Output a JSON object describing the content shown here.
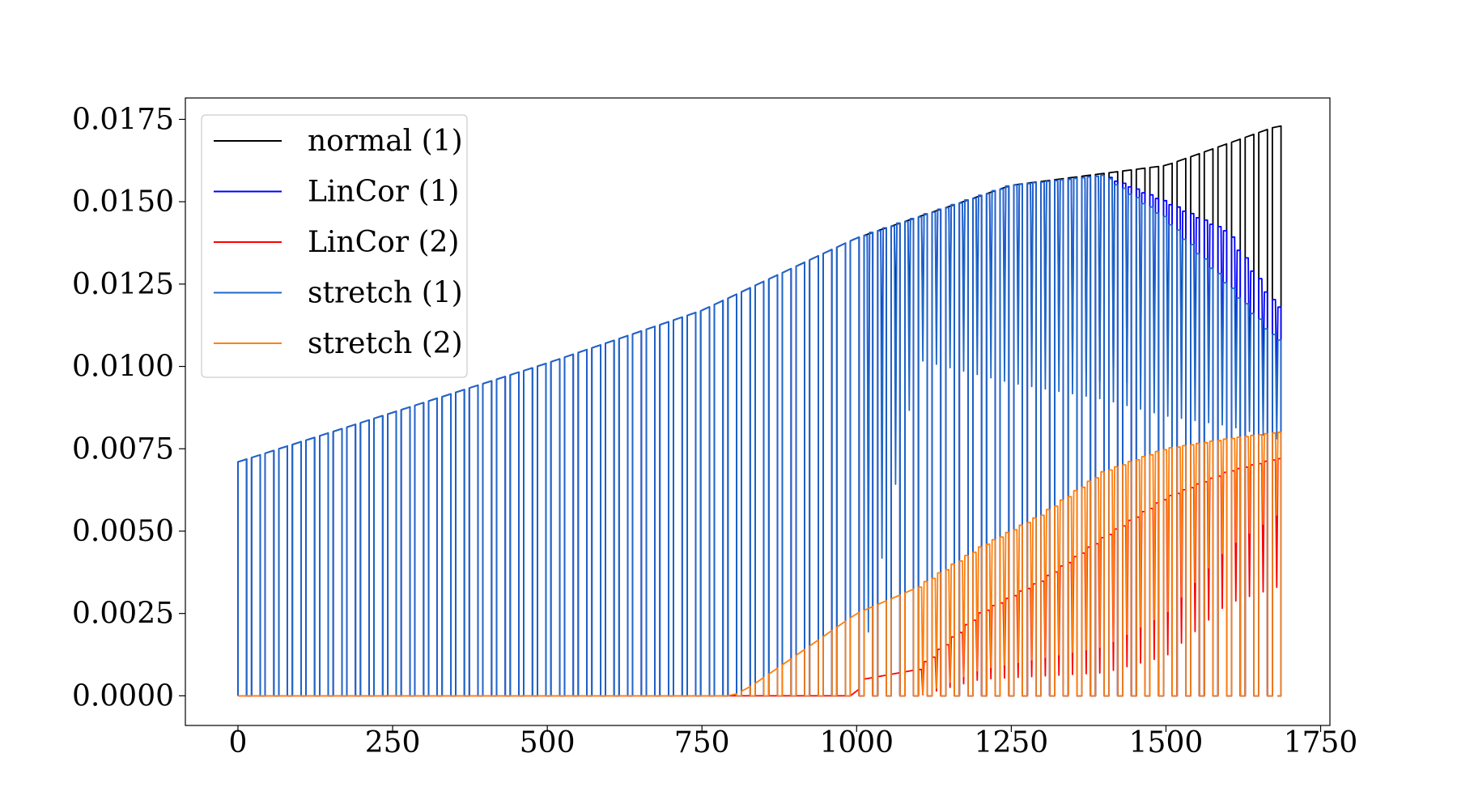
{
  "chart_data": {
    "type": "line",
    "title": "",
    "xlabel": "",
    "ylabel": "",
    "xlim": [
      -85,
      1765
    ],
    "ylim": [
      -0.0009,
      0.01815
    ],
    "x_ticks": [
      0,
      250,
      500,
      750,
      1000,
      1250,
      1500,
      1750
    ],
    "x_tick_labels": [
      "0",
      "250",
      "500",
      "750",
      "1000",
      "1250",
      "1500",
      "1750"
    ],
    "y_ticks": [
      0,
      0.0025,
      0.005,
      0.0075,
      0.01,
      0.0125,
      0.015,
      0.0175
    ],
    "y_tick_labels": [
      "0.0000",
      "0.0025",
      "0.0050",
      "0.0075",
      "0.0100",
      "0.0125",
      "0.0150",
      "0.0175"
    ],
    "grid": false,
    "legend_position": "top-left",
    "pulse": {
      "x_start": 0,
      "x_end": 1680,
      "period": 22,
      "on_width": 14,
      "count": 77
    },
    "series": [
      {
        "name": "normal (1)",
        "color": "#000000",
        "peak_envelope": [
          [
            0,
            0.0071
          ],
          [
            250,
            0.0086
          ],
          [
            500,
            0.0101
          ],
          [
            750,
            0.0117
          ],
          [
            1000,
            0.0139
          ],
          [
            1250,
            0.0155
          ],
          [
            1500,
            0.0161
          ],
          [
            1680,
            0.0173
          ]
        ],
        "dip_envelope": [
          [
            0,
            0.0
          ],
          [
            1680,
            0.0
          ]
        ]
      },
      {
        "name": "LinCor (1)",
        "color": "#0000ff",
        "peak_envelope": [
          [
            0,
            0.0071
          ],
          [
            250,
            0.0086
          ],
          [
            500,
            0.0101
          ],
          [
            750,
            0.0117
          ],
          [
            1000,
            0.0139
          ],
          [
            1250,
            0.0155
          ],
          [
            1400,
            0.0158
          ],
          [
            1500,
            0.015
          ],
          [
            1600,
            0.0141
          ],
          [
            1680,
            0.0118
          ]
        ],
        "dip_envelope": [
          [
            0,
            0.0
          ],
          [
            1000,
            0.0
          ],
          [
            1050,
            0.0111
          ],
          [
            1250,
            0.0109
          ],
          [
            1400,
            0.0095
          ],
          [
            1500,
            0.0095
          ],
          [
            1680,
            0.0091
          ]
        ]
      },
      {
        "name": "LinCor (2)",
        "color": "#ff0000",
        "peak_envelope": [
          [
            0,
            0.0
          ],
          [
            1000,
            0.0
          ],
          [
            1010,
            0.0005
          ],
          [
            1100,
            0.0008
          ],
          [
            1200,
            0.0025
          ],
          [
            1300,
            0.0035
          ],
          [
            1400,
            0.0048
          ],
          [
            1500,
            0.006
          ],
          [
            1600,
            0.0068
          ],
          [
            1680,
            0.0072
          ]
        ],
        "dip_envelope": [
          [
            0,
            0.0
          ],
          [
            1100,
            0.0
          ],
          [
            1200,
            0.0005
          ],
          [
            1400,
            0.0007
          ],
          [
            1500,
            0.0012
          ],
          [
            1600,
            0.0028
          ],
          [
            1680,
            0.0033
          ]
        ]
      },
      {
        "name": "stretch (1)",
        "color": "#1f68c9",
        "peak_envelope": [
          [
            0,
            0.0071
          ],
          [
            250,
            0.0086
          ],
          [
            500,
            0.0101
          ],
          [
            750,
            0.0117
          ],
          [
            1000,
            0.0139
          ],
          [
            1250,
            0.0155
          ],
          [
            1400,
            0.0158
          ],
          [
            1500,
            0.0145
          ],
          [
            1600,
            0.0125
          ],
          [
            1680,
            0.0108
          ]
        ],
        "dip_envelope": [
          [
            0,
            0.0
          ],
          [
            1000,
            0.0
          ],
          [
            1100,
            0.0102
          ],
          [
            1250,
            0.0095
          ],
          [
            1400,
            0.009
          ],
          [
            1500,
            0.0085
          ],
          [
            1600,
            0.0082
          ],
          [
            1680,
            0.0078
          ]
        ]
      },
      {
        "name": "stretch (2)",
        "color": "#ff7f0e",
        "peak_envelope": [
          [
            0,
            0.0
          ],
          [
            800,
            0.0
          ],
          [
            830,
            0.0003
          ],
          [
            900,
            0.0012
          ],
          [
            1000,
            0.0025
          ],
          [
            1100,
            0.0033
          ],
          [
            1200,
            0.0045
          ],
          [
            1300,
            0.0055
          ],
          [
            1400,
            0.0068
          ],
          [
            1500,
            0.0075
          ],
          [
            1600,
            0.0078
          ],
          [
            1680,
            0.008
          ]
        ],
        "dip_envelope": [
          [
            0,
            0.0
          ],
          [
            1100,
            0.0
          ],
          [
            1200,
            0.0008
          ],
          [
            1400,
            0.0015
          ],
          [
            1500,
            0.0025
          ],
          [
            1600,
            0.0045
          ],
          [
            1680,
            0.0055
          ]
        ]
      }
    ]
  }
}
